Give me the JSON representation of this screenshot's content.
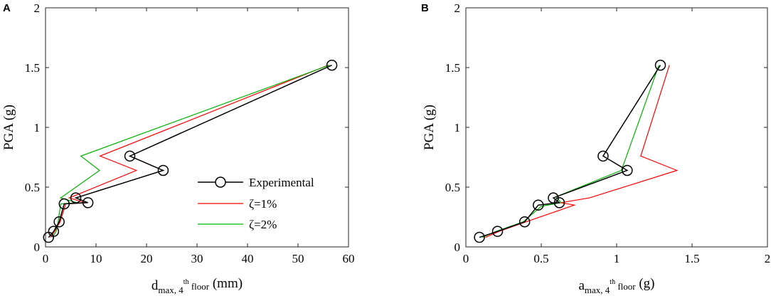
{
  "figure": {
    "colors": {
      "experimental": "#000000",
      "zeta1": "#ff0000",
      "zeta2": "#00b400"
    }
  },
  "chart_data": [
    {
      "type": "line",
      "panel_label": "A",
      "title": "",
      "xlabel": {
        "main": "d",
        "sub": "max, 4",
        "sup": "th",
        "sub2": " floor",
        "unit": " (mm)"
      },
      "ylabel": "PGA (g)",
      "xlim": [
        0,
        60
      ],
      "ylim": [
        0,
        2
      ],
      "xticks": [
        0,
        10,
        20,
        30,
        40,
        50,
        60
      ],
      "yticks": [
        0,
        0.5,
        1,
        1.5,
        2
      ],
      "xtick_labels": [
        "0",
        "10",
        "20",
        "30",
        "40",
        "50",
        "60"
      ],
      "ytick_labels": [
        "0",
        "0.5",
        "1",
        "1.5",
        "2"
      ],
      "grid": false,
      "legend": {
        "position": "lower-center",
        "entries": [
          "Experimental",
          "ζ=1%",
          "ζ=2%"
        ]
      },
      "series": [
        {
          "name": "Experimental",
          "color": "#000000",
          "marker": "circle",
          "x": [
            0.6,
            1.6,
            2.7,
            3.7,
            8.4,
            6.0,
            23.3,
            16.7,
            56.7
          ],
          "y": [
            0.08,
            0.13,
            0.21,
            0.36,
            0.37,
            0.41,
            0.64,
            0.76,
            1.52
          ]
        },
        {
          "name": "ζ=1%",
          "color": "#ff0000",
          "marker": "none",
          "x": [
            1.0,
            1.8,
            2.9,
            4.0,
            7.8,
            4.7,
            18.0,
            10.8,
            56.0
          ],
          "y": [
            0.08,
            0.13,
            0.21,
            0.36,
            0.37,
            0.41,
            0.64,
            0.76,
            1.52
          ]
        },
        {
          "name": "ζ=2%",
          "color": "#00b400",
          "marker": "none",
          "x": [
            1.4,
            2.1,
            2.5,
            3.0,
            6.2,
            3.0,
            10.7,
            7.0,
            56.2
          ],
          "y": [
            0.08,
            0.13,
            0.21,
            0.36,
            0.37,
            0.41,
            0.64,
            0.76,
            1.52
          ]
        }
      ]
    },
    {
      "type": "line",
      "panel_label": "B",
      "title": "",
      "xlabel": {
        "main": "a",
        "sub": "max, 4",
        "sup": "th",
        "sub2": " floor",
        "unit": " (g)"
      },
      "ylabel": "PGA (g)",
      "xlim": [
        0,
        2
      ],
      "ylim": [
        0,
        2
      ],
      "xticks": [
        0,
        0.5,
        1,
        1.5,
        2
      ],
      "yticks": [
        0,
        0.5,
        1,
        1.5,
        2
      ],
      "xtick_labels": [
        "0",
        "0.5",
        "1",
        "1.5",
        "2"
      ],
      "ytick_labels": [
        "0",
        "0.5",
        "1",
        "1.5",
        "2"
      ],
      "grid": false,
      "series": [
        {
          "name": "Experimental",
          "color": "#000000",
          "marker": "circle",
          "x": [
            0.09,
            0.21,
            0.39,
            0.48,
            0.62,
            0.58,
            1.07,
            0.91,
            1.29
          ],
          "y": [
            0.08,
            0.13,
            0.21,
            0.35,
            0.37,
            0.41,
            0.64,
            0.76,
            1.52
          ]
        },
        {
          "name": "ζ=1%",
          "color": "#ff0000",
          "marker": "none",
          "x": [
            0.13,
            0.22,
            0.4,
            0.72,
            0.63,
            0.82,
            1.4,
            1.16,
            1.35
          ],
          "y": [
            0.08,
            0.13,
            0.21,
            0.35,
            0.37,
            0.41,
            0.64,
            0.76,
            1.52
          ]
        },
        {
          "name": "ζ=2%",
          "color": "#00b400",
          "marker": "none",
          "x": [
            0.11,
            0.2,
            0.38,
            0.5,
            0.63,
            0.6,
            1.03,
            1.06,
            1.28
          ],
          "y": [
            0.08,
            0.13,
            0.21,
            0.34,
            0.37,
            0.42,
            0.64,
            0.74,
            1.52
          ]
        }
      ]
    }
  ]
}
